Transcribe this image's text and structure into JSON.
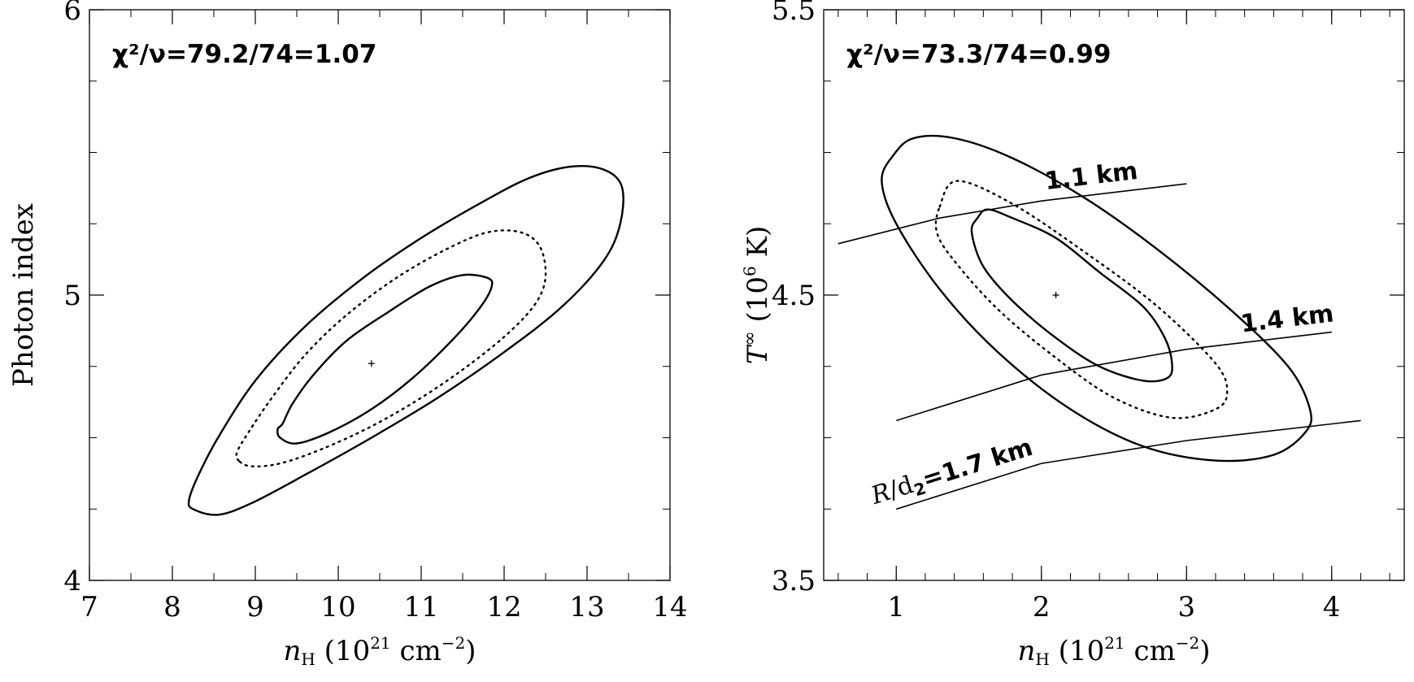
{
  "chart_data": [
    {
      "type": "contour",
      "xlim": [
        7,
        14
      ],
      "ylim": [
        4,
        6
      ],
      "xticks": [
        7,
        8,
        9,
        10,
        11,
        12,
        13,
        14
      ],
      "yticks": [
        4,
        5,
        6
      ],
      "xtick_labels": [
        "7",
        "8",
        "9",
        "10",
        "11",
        "12",
        "13",
        "14"
      ],
      "ytick_labels": [
        "4",
        "5",
        "6"
      ],
      "xminor_step": 0.5,
      "yminor_step": 0.25,
      "ylabel": "Photon index",
      "xlabel": {
        "sym": "n",
        "sub": "H",
        "pre": "(10",
        "sup": "21",
        "post": " cm",
        "sup2": "−2",
        "close": ")"
      },
      "annotation": "χ²/ν=79.2/74=1.07",
      "best_fit": {
        "x": 10.4,
        "y": 4.76
      },
      "contours": [
        {
          "level": "inner",
          "style": "solid",
          "points": [
            [
              9.33,
              4.55
            ],
            [
              9.27,
              4.53
            ],
            [
              9.3,
              4.5
            ],
            [
              9.5,
              4.48
            ],
            [
              9.9,
              4.52
            ],
            [
              10.4,
              4.6
            ],
            [
              10.9,
              4.71
            ],
            [
              11.4,
              4.85
            ],
            [
              11.72,
              4.96
            ],
            [
              11.85,
              5.03
            ],
            [
              11.8,
              5.06
            ],
            [
              11.5,
              5.07
            ],
            [
              11.1,
              5.03
            ],
            [
              10.6,
              4.94
            ],
            [
              10.1,
              4.84
            ],
            [
              9.7,
              4.72
            ],
            [
              9.45,
              4.62
            ],
            [
              9.33,
              4.55
            ]
          ]
        },
        {
          "level": "middle",
          "style": "dotted",
          "points": [
            [
              8.8,
              4.42
            ],
            [
              8.78,
              4.45
            ],
            [
              8.92,
              4.52
            ],
            [
              9.2,
              4.64
            ],
            [
              9.6,
              4.79
            ],
            [
              10.1,
              4.93
            ],
            [
              10.7,
              5.06
            ],
            [
              11.3,
              5.16
            ],
            [
              11.8,
              5.22
            ],
            [
              12.2,
              5.22
            ],
            [
              12.43,
              5.17
            ],
            [
              12.5,
              5.07
            ],
            [
              12.4,
              4.98
            ],
            [
              12.1,
              4.88
            ],
            [
              11.6,
              4.76
            ],
            [
              11.0,
              4.64
            ],
            [
              10.4,
              4.54
            ],
            [
              9.8,
              4.46
            ],
            [
              9.3,
              4.41
            ],
            [
              8.95,
              4.4
            ],
            [
              8.8,
              4.42
            ]
          ]
        },
        {
          "level": "outer",
          "style": "solid",
          "points": [
            [
              8.25,
              4.25
            ],
            [
              8.2,
              4.28
            ],
            [
              8.3,
              4.36
            ],
            [
              8.55,
              4.5
            ],
            [
              9.0,
              4.7
            ],
            [
              9.6,
              4.89
            ],
            [
              10.3,
              5.06
            ],
            [
              11.0,
              5.2
            ],
            [
              11.7,
              5.32
            ],
            [
              12.3,
              5.41
            ],
            [
              12.8,
              5.45
            ],
            [
              13.2,
              5.44
            ],
            [
              13.42,
              5.38
            ],
            [
              13.4,
              5.25
            ],
            [
              13.2,
              5.12
            ],
            [
              12.7,
              4.96
            ],
            [
              12.0,
              4.8
            ],
            [
              11.2,
              4.64
            ],
            [
              10.4,
              4.5
            ],
            [
              9.6,
              4.37
            ],
            [
              8.95,
              4.27
            ],
            [
              8.55,
              4.23
            ],
            [
              8.25,
              4.25
            ]
          ]
        }
      ]
    },
    {
      "type": "contour",
      "xlim": [
        0.5,
        4.5
      ],
      "ylim": [
        3.5,
        5.5
      ],
      "xticks": [
        1,
        2,
        3,
        4
      ],
      "yticks": [
        3.5,
        4.5,
        5.5
      ],
      "xtick_labels": [
        "1",
        "2",
        "3",
        "4"
      ],
      "ytick_labels": [
        "3.5",
        "4.5",
        "5.5"
      ],
      "xminor_step": 0.2,
      "yminor_step": 0.25,
      "ylabel": {
        "sym": "T",
        "sup": "∞",
        "pre": "(10",
        "sup2": "6",
        "post": " K)"
      },
      "xlabel": {
        "sym": "n",
        "sub": "H",
        "pre": "(10",
        "sup": "21",
        "post": " cm",
        "sup2": "−2",
        "close": ")"
      },
      "annotation": "χ²/ν=73.3/74=0.99",
      "best_fit": {
        "x": 2.1,
        "y": 4.5
      },
      "radius_lines": [
        {
          "label": "1.1 km",
          "points": [
            [
              0.6,
              4.68
            ],
            [
              1.3,
              4.77
            ],
            [
              2.0,
              4.83
            ],
            [
              3.0,
              4.89
            ]
          ]
        },
        {
          "label": "1.4 km",
          "points": [
            [
              1.0,
              4.06
            ],
            [
              2.0,
              4.22
            ],
            [
              3.0,
              4.31
            ],
            [
              4.0,
              4.37
            ]
          ]
        },
        {
          "label_prefix": "R/d",
          "label_sub": "2",
          "label": "=1.7 km",
          "points": [
            [
              1.0,
              3.75
            ],
            [
              2.0,
              3.91
            ],
            [
              3.0,
              3.99
            ],
            [
              4.2,
              4.06
            ]
          ]
        }
      ],
      "contours": [
        {
          "level": "inner",
          "style": "solid",
          "points": [
            [
              1.56,
              4.77
            ],
            [
              1.52,
              4.72
            ],
            [
              1.6,
              4.6
            ],
            [
              1.8,
              4.48
            ],
            [
              2.1,
              4.35
            ],
            [
              2.4,
              4.25
            ],
            [
              2.7,
              4.2
            ],
            [
              2.87,
              4.21
            ],
            [
              2.9,
              4.26
            ],
            [
              2.85,
              4.35
            ],
            [
              2.7,
              4.46
            ],
            [
              2.4,
              4.58
            ],
            [
              2.1,
              4.7
            ],
            [
              1.8,
              4.77
            ],
            [
              1.63,
              4.8
            ],
            [
              1.56,
              4.77
            ]
          ]
        },
        {
          "level": "middle",
          "style": "dotted",
          "points": [
            [
              1.3,
              4.81
            ],
            [
              1.42,
              4.9
            ],
            [
              1.8,
              4.82
            ],
            [
              2.3,
              4.65
            ],
            [
              2.8,
              4.46
            ],
            [
              3.2,
              4.26
            ],
            [
              3.28,
              4.16
            ],
            [
              3.2,
              4.1
            ],
            [
              2.9,
              4.07
            ],
            [
              2.5,
              4.14
            ],
            [
              2.1,
              4.28
            ],
            [
              1.7,
              4.45
            ],
            [
              1.4,
              4.62
            ],
            [
              1.28,
              4.72
            ],
            [
              1.3,
              4.81
            ]
          ]
        },
        {
          "level": "outer",
          "style": "solid",
          "points": [
            [
              1.12,
              5.05
            ],
            [
              0.98,
              4.99
            ],
            [
              0.9,
              4.9
            ],
            [
              1.0,
              4.75
            ],
            [
              1.3,
              4.52
            ],
            [
              1.7,
              4.3
            ],
            [
              2.2,
              4.1
            ],
            [
              2.7,
              3.97
            ],
            [
              3.2,
              3.92
            ],
            [
              3.6,
              3.94
            ],
            [
              3.82,
              4.02
            ],
            [
              3.85,
              4.1
            ],
            [
              3.7,
              4.25
            ],
            [
              3.3,
              4.45
            ],
            [
              2.8,
              4.66
            ],
            [
              2.3,
              4.84
            ],
            [
              1.8,
              4.98
            ],
            [
              1.4,
              5.05
            ],
            [
              1.12,
              5.05
            ]
          ]
        }
      ]
    }
  ]
}
